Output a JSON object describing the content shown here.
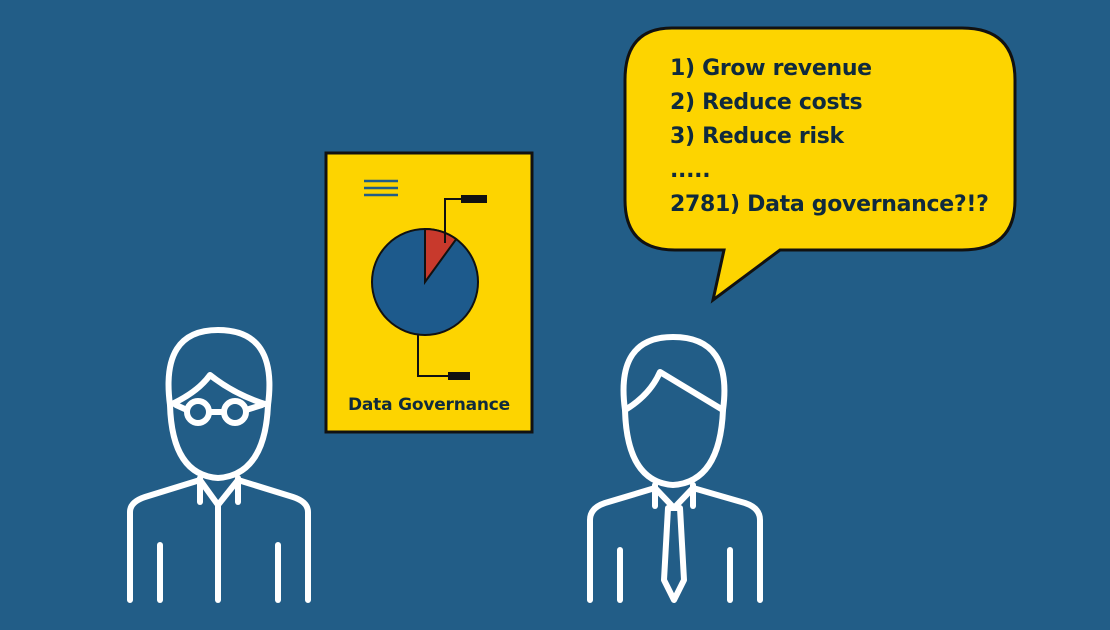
{
  "poster": {
    "title": "Data Governance",
    "pie_highlight_fraction": 0.1
  },
  "speech_bubble": {
    "lines": [
      "1) Grow revenue",
      "2) Reduce costs",
      "3) Reduce risk",
      ".....",
      "2781) Data governance?!?"
    ]
  },
  "colors": {
    "background": "#225d87",
    "yellow": "#fdd400",
    "pie_blue": "#1d5a8c",
    "pie_red": "#c8392c",
    "outline": "#ffffff",
    "ink": "#0f2a3d"
  }
}
